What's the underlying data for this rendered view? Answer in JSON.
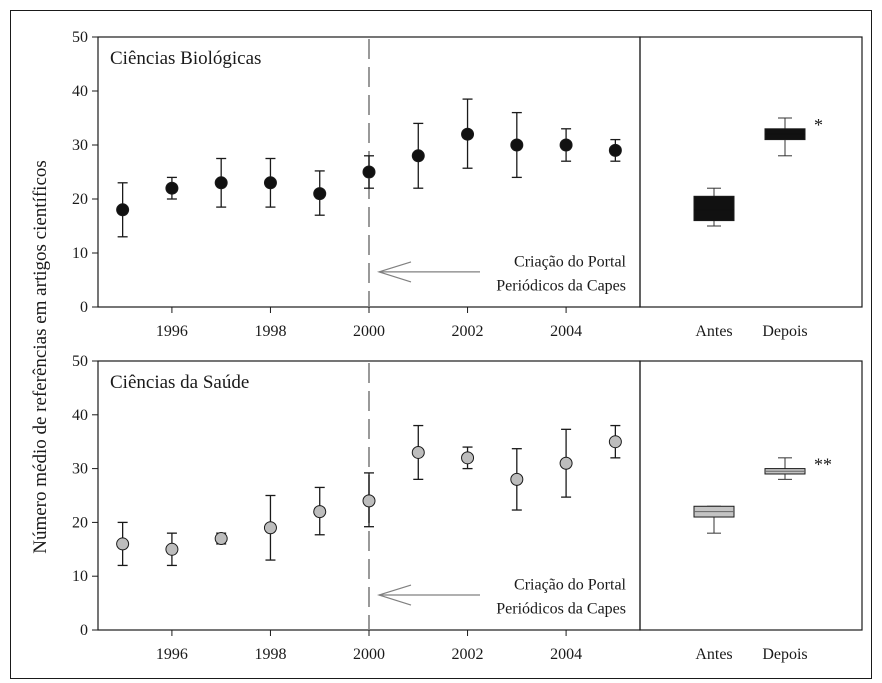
{
  "y_axis_label": "Número médio de referências em artigos científicos",
  "chart_data": [
    {
      "type": "scatter",
      "title": "Ciências Biológicas",
      "ylim": [
        0,
        50
      ],
      "xlim": [
        1994.5,
        2005.5
      ],
      "yticks": [
        0,
        10,
        20,
        30,
        40,
        50
      ],
      "xticks": [
        1996,
        1998,
        2000,
        2002,
        2004
      ],
      "marker_color": "#111111",
      "series": [
        {
          "x": [
            1995,
            1996,
            1997,
            1998,
            1999,
            2000,
            2001,
            2002,
            2003,
            2004,
            2005
          ],
          "y": [
            18,
            22,
            23,
            23,
            21,
            25,
            28,
            32,
            30,
            30,
            29
          ],
          "err_low": [
            13,
            20,
            18.5,
            18.5,
            17,
            22,
            22,
            25.7,
            24,
            27,
            27
          ],
          "err_high": [
            23,
            24,
            27.5,
            27.5,
            25.2,
            28,
            34,
            38.5,
            36,
            33,
            31
          ]
        }
      ],
      "annotation": {
        "x": 2000,
        "lines": [
          "Criação do Portal",
          "Periódicos da Capes"
        ]
      },
      "boxplot": {
        "categories": [
          "Antes",
          "Depois"
        ],
        "color": "#111111",
        "boxes": [
          {
            "min": 15,
            "q1": 16,
            "median": 18,
            "q3": 20.5,
            "max": 22
          },
          {
            "min": 28,
            "q1": 31,
            "median": 32,
            "q3": 33,
            "max": 35
          }
        ],
        "significance": "*"
      }
    },
    {
      "type": "scatter",
      "title": "Ciências da Saúde",
      "ylim": [
        0,
        50
      ],
      "xlim": [
        1994.5,
        2005.5
      ],
      "yticks": [
        0,
        10,
        20,
        30,
        40,
        50
      ],
      "xticks": [
        1996,
        1998,
        2000,
        2002,
        2004
      ],
      "marker_color": "#bdbdbd",
      "series": [
        {
          "x": [
            1995,
            1996,
            1997,
            1998,
            1999,
            2000,
            2001,
            2002,
            2003,
            2004,
            2005
          ],
          "y": [
            16,
            15,
            17,
            19,
            22,
            24,
            33,
            32,
            28,
            31,
            35
          ],
          "err_low": [
            12,
            12,
            16,
            13,
            17.7,
            19.2,
            28,
            30,
            22.3,
            24.7,
            32
          ],
          "err_high": [
            20,
            18,
            18,
            25,
            26.5,
            29.2,
            38,
            34,
            33.7,
            37.3,
            38
          ]
        }
      ],
      "annotation": {
        "x": 2000,
        "lines": [
          "Criação do Portal",
          "Periódicos da Capes"
        ]
      },
      "boxplot": {
        "categories": [
          "Antes",
          "Depois"
        ],
        "color": "#c4c4c4",
        "boxes": [
          {
            "min": 18,
            "q1": 21,
            "median": 22,
            "q3": 23,
            "max": 23
          },
          {
            "min": 28,
            "q1": 29,
            "median": 29.5,
            "q3": 30,
            "max": 32
          }
        ],
        "significance": "**"
      }
    }
  ]
}
